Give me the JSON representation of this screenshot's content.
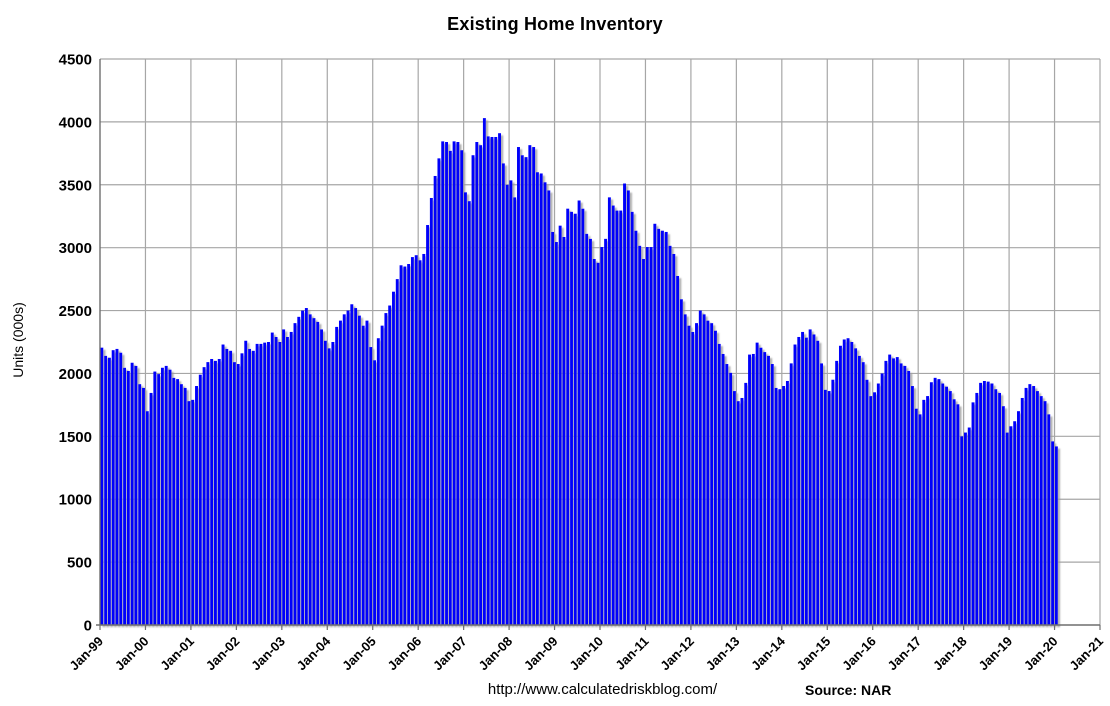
{
  "chart_data": {
    "type": "bar",
    "title": "Existing Home Inventory",
    "ylabel": "Units (000s)",
    "xlabel": "",
    "footer_url": "http://www.calculatedriskblog.com/",
    "source_label": "Source: NAR",
    "ylim": [
      0,
      4500
    ],
    "ytick_step": 500,
    "ytick_labels": [
      "4500",
      "4000",
      "3500",
      "3000",
      "2500",
      "2000",
      "1500",
      "1000",
      "500",
      "0"
    ],
    "xtick_labels": [
      "Jan-99",
      "Jan-00",
      "Jan-01",
      "Jan-02",
      "Jan-03",
      "Jan-04",
      "Jan-05",
      "Jan-06",
      "Jan-07",
      "Jan-08",
      "Jan-09",
      "Jan-10",
      "Jan-11",
      "Jan-12",
      "Jan-13",
      "Jan-14",
      "Jan-15",
      "Jan-16",
      "Jan-17",
      "Jan-18",
      "Jan-19",
      "Jan-20",
      "Jan-21"
    ],
    "frequency": "monthly",
    "series_start": "Jan-99",
    "series_end": "Jan-20",
    "grid": true,
    "legend_position": "none",
    "colors": {
      "bar": "#0000fa",
      "gridline": "#a6a6a6",
      "axis": "#6e6e6e",
      "shadow": "#9c9c9c",
      "background": "#ffffff",
      "text": "#000000"
    },
    "values": [
      2205,
      2140,
      2125,
      2185,
      2195,
      2165,
      2045,
      2020,
      2085,
      2060,
      1915,
      1885,
      1700,
      1845,
      2015,
      1995,
      2045,
      2060,
      2030,
      1965,
      1955,
      1915,
      1885,
      1780,
      1790,
      1900,
      1990,
      2050,
      2090,
      2115,
      2100,
      2115,
      2230,
      2195,
      2180,
      2090,
      2075,
      2160,
      2260,
      2195,
      2180,
      2235,
      2235,
      2245,
      2250,
      2325,
      2290,
      2250,
      2350,
      2290,
      2330,
      2400,
      2450,
      2500,
      2520,
      2470,
      2440,
      2410,
      2350,
      2260,
      2200,
      2250,
      2370,
      2420,
      2470,
      2500,
      2550,
      2520,
      2460,
      2380,
      2420,
      2210,
      2105,
      2280,
      2380,
      2480,
      2540,
      2650,
      2750,
      2860,
      2850,
      2870,
      2925,
      2940,
      2900,
      2950,
      3180,
      3395,
      3570,
      3710,
      3845,
      3840,
      3770,
      3845,
      3840,
      3775,
      3440,
      3370,
      3735,
      3840,
      3815,
      4030,
      3885,
      3880,
      3880,
      3910,
      3670,
      3500,
      3535,
      3400,
      3800,
      3735,
      3720,
      3815,
      3800,
      3600,
      3590,
      3520,
      3455,
      3125,
      3045,
      3175,
      3085,
      3310,
      3285,
      3270,
      3375,
      3310,
      3110,
      3070,
      2910,
      2880,
      3005,
      3070,
      3400,
      3335,
      3295,
      3295,
      3510,
      3455,
      3285,
      3135,
      3015,
      2910,
      3005,
      3005,
      3190,
      3150,
      3135,
      3125,
      3015,
      2950,
      2775,
      2590,
      2470,
      2380,
      2330,
      2400,
      2500,
      2470,
      2420,
      2400,
      2340,
      2235,
      2155,
      2075,
      2005,
      1860,
      1780,
      1805,
      1925,
      2150,
      2155,
      2245,
      2205,
      2170,
      2140,
      2075,
      1885,
      1875,
      1900,
      1940,
      2080,
      2230,
      2290,
      2330,
      2285,
      2350,
      2310,
      2260,
      2080,
      1870,
      1860,
      1950,
      2100,
      2220,
      2270,
      2280,
      2250,
      2200,
      2140,
      2090,
      1950,
      1820,
      1850,
      1920,
      2000,
      2100,
      2150,
      2120,
      2130,
      2080,
      2060,
      2020,
      1900,
      1720,
      1675,
      1790,
      1820,
      1930,
      1965,
      1955,
      1920,
      1895,
      1860,
      1795,
      1755,
      1500,
      1530,
      1570,
      1770,
      1845,
      1925,
      1940,
      1935,
      1920,
      1875,
      1845,
      1740,
      1530,
      1580,
      1620,
      1700,
      1805,
      1885,
      1915,
      1900,
      1860,
      1820,
      1780,
      1675,
      1460,
      1420
    ]
  }
}
